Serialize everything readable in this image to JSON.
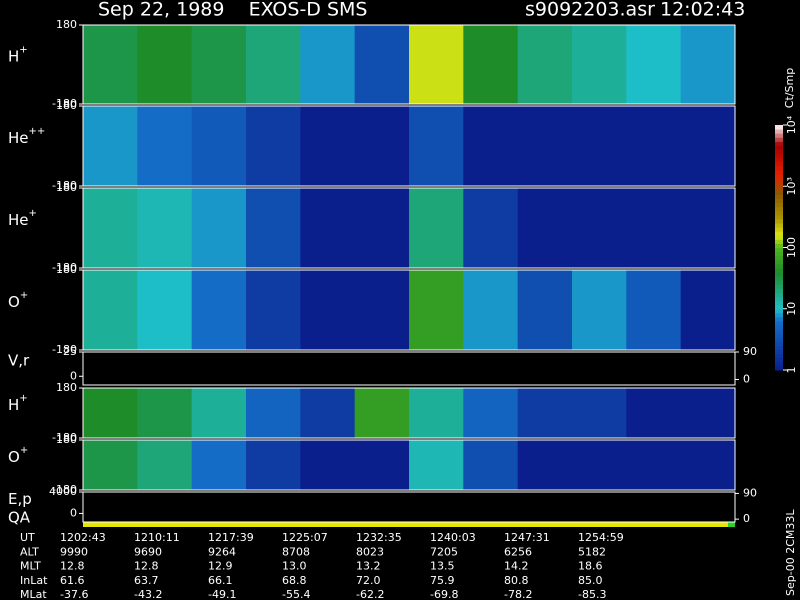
{
  "header": {
    "title": "Sep 22, 1989    EXOS-D SMS",
    "file": "s9092203.asr",
    "time": "12:02:43"
  },
  "chart_data": {
    "type": "spectrogram",
    "panels": [
      {
        "type": "spectrogram",
        "label": "H",
        "sup": "+",
        "ylim": [
          -180,
          180
        ],
        "yticks": [
          180,
          -180
        ],
        "values": [
          30,
          40,
          30,
          20,
          8,
          3,
          150,
          40,
          20,
          15,
          10,
          8
        ]
      },
      {
        "type": "spectrogram",
        "label": "He",
        "sup": "++",
        "ylim": [
          -180,
          180
        ],
        "yticks": [
          180,
          -180
        ],
        "values": [
          8,
          6,
          4,
          2,
          1,
          1,
          3,
          1,
          1,
          1,
          1,
          1
        ]
      },
      {
        "type": "spectrogram",
        "label": "He",
        "sup": "+",
        "ylim": [
          -180,
          180
        ],
        "yticks": [
          180,
          -180
        ],
        "values": [
          15,
          12,
          8,
          3,
          1,
          1,
          20,
          2,
          1,
          1,
          1,
          1
        ]
      },
      {
        "type": "spectrogram",
        "label": "O",
        "sup": "+",
        "ylim": [
          -180,
          180
        ],
        "yticks": [
          180,
          -180
        ],
        "values": [
          15,
          10,
          6,
          2,
          1,
          1,
          60,
          8,
          3,
          8,
          4,
          1
        ]
      },
      {
        "type": "line",
        "label": "V,r",
        "ylim": [
          -9,
          25
        ],
        "yticks": [
          25,
          0
        ],
        "y2lim": [
          -18,
          90
        ],
        "y2ticks": [
          90,
          0
        ]
      },
      {
        "type": "spectrogram",
        "label": "H",
        "sup": "+",
        "ylim": [
          -180,
          180
        ],
        "yticks": [
          180,
          -180
        ],
        "values": [
          40,
          30,
          15,
          5,
          2,
          60,
          15,
          5,
          2,
          2,
          1,
          1
        ]
      },
      {
        "type": "spectrogram",
        "label": "O",
        "sup": "+",
        "ylim": [
          -180,
          180
        ],
        "yticks": [
          180,
          -180
        ],
        "values": [
          30,
          20,
          6,
          2,
          1,
          1,
          12,
          3,
          1,
          1,
          1,
          1
        ]
      },
      {
        "type": "line",
        "label": "E,p",
        "ylim": [
          -1600,
          4000
        ],
        "yticks": [
          4000,
          0
        ],
        "y2lim": [
          -10,
          95
        ],
        "y2ticks": [
          90,
          0
        ]
      }
    ],
    "qa_label": "QA",
    "colorbar": {
      "label": "Ct/Smp",
      "log": true,
      "lim": [
        1,
        10000
      ],
      "ticks": [
        1,
        10,
        100,
        {
          "value": 1000,
          "label": "10³"
        },
        {
          "value": 10000,
          "label": "10⁴"
        }
      ]
    }
  },
  "table": {
    "rows": [
      {
        "label": "UT",
        "values": [
          "1202:43",
          "1210:11",
          "1217:39",
          "1225:07",
          "1232:35",
          "1240:03",
          "1247:31",
          "1254:59"
        ]
      },
      {
        "label": "ALT",
        "values": [
          "9990",
          "9690",
          "9264",
          "8708",
          "8023",
          "7205",
          "6256",
          "5182"
        ]
      },
      {
        "label": "MLT",
        "values": [
          "12.8",
          "12.8",
          "12.9",
          "13.0",
          "13.2",
          "13.5",
          "14.2",
          "18.6"
        ]
      },
      {
        "label": "InLat",
        "values": [
          "61.6",
          "63.7",
          "66.1",
          "68.8",
          "72.0",
          "75.9",
          "80.8",
          "85.0"
        ]
      },
      {
        "label": "MLat",
        "values": [
          "-37.6",
          "-43.2",
          "-49.1",
          "-55.4",
          "-62.2",
          "-69.8",
          "-78.2",
          "-85.3"
        ]
      }
    ]
  },
  "footer": "Sep-00 2CM33L"
}
